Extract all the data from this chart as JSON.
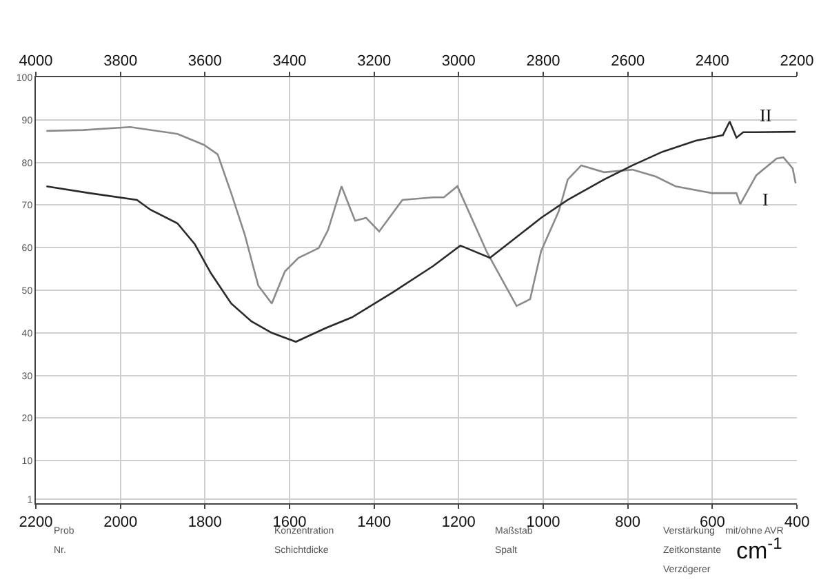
{
  "chart_data": {
    "type": "line",
    "xlabel": "cm$^{-1}$",
    "xlim": [
      2200,
      400
    ],
    "xticks": [
      2200,
      2000,
      1800,
      1600,
      1400,
      1200,
      1000,
      800,
      600,
      400
    ],
    "x2lim": [
      4000,
      2200
    ],
    "x2ticks": [
      4000,
      3800,
      3600,
      3400,
      3200,
      3000,
      2800,
      2600,
      2400,
      2200
    ],
    "ylim": [
      0,
      100
    ],
    "yticks": [
      1,
      10,
      20,
      30,
      40,
      50,
      60,
      70,
      80,
      90,
      100
    ],
    "grid": true,
    "legend": false,
    "marker": "none",
    "line_style": "solid",
    "series": [
      {
        "name": "I",
        "color": "#8a8a8a",
        "x": [
          2175,
          2088,
          1977,
          1865,
          1802,
          1770,
          1738,
          1706,
          1674,
          1642,
          1611,
          1579,
          1531,
          1509,
          1477,
          1445,
          1419,
          1388,
          1333,
          1260,
          1235,
          1203,
          1133,
          1063,
          1031,
          1005,
          963,
          942,
          910,
          856,
          789,
          734,
          687,
          601,
          543,
          534,
          496,
          448,
          432,
          410,
          403
        ],
        "values": [
          87.4,
          87.6,
          88.3,
          86.7,
          84.1,
          81.9,
          72.8,
          63.1,
          51.1,
          46.9,
          54.4,
          57.6,
          59.9,
          64.1,
          74.4,
          66.3,
          67.0,
          63.8,
          71.2,
          71.8,
          71.8,
          74.4,
          58.9,
          46.3,
          47.9,
          59.2,
          68.6,
          76.0,
          79.3,
          77.7,
          78.3,
          76.7,
          74.4,
          72.8,
          72.8,
          70.2,
          77.0,
          80.9,
          81.2,
          78.6,
          75.1
        ]
      },
      {
        "name": "II",
        "color": "#2a2a2a",
        "x": [
          2175,
          2073,
          1961,
          1929,
          1865,
          1824,
          1786,
          1738,
          1690,
          1642,
          1585,
          1515,
          1451,
          1356,
          1260,
          1196,
          1126,
          1069,
          1005,
          942,
          856,
          789,
          718,
          639,
          575,
          559,
          543,
          527,
          496,
          403
        ],
        "values": [
          74.4,
          72.8,
          71.2,
          68.9,
          65.7,
          60.8,
          54.0,
          46.9,
          42.7,
          40.0,
          37.9,
          41.1,
          43.7,
          49.5,
          55.7,
          60.5,
          57.6,
          62.0,
          67.0,
          71.2,
          76.0,
          79.3,
          82.5,
          85.1,
          86.4,
          89.6,
          85.8,
          87.1,
          87.1,
          87.2
        ]
      }
    ],
    "annotations": [
      "Prob",
      "Nr.",
      "Konzentration",
      "Schichtdicke",
      "Maßstab",
      "Spalt",
      "Verstärkung",
      "Zeitkonstante",
      "Verzögerer",
      "mit/ohne AVR"
    ]
  }
}
